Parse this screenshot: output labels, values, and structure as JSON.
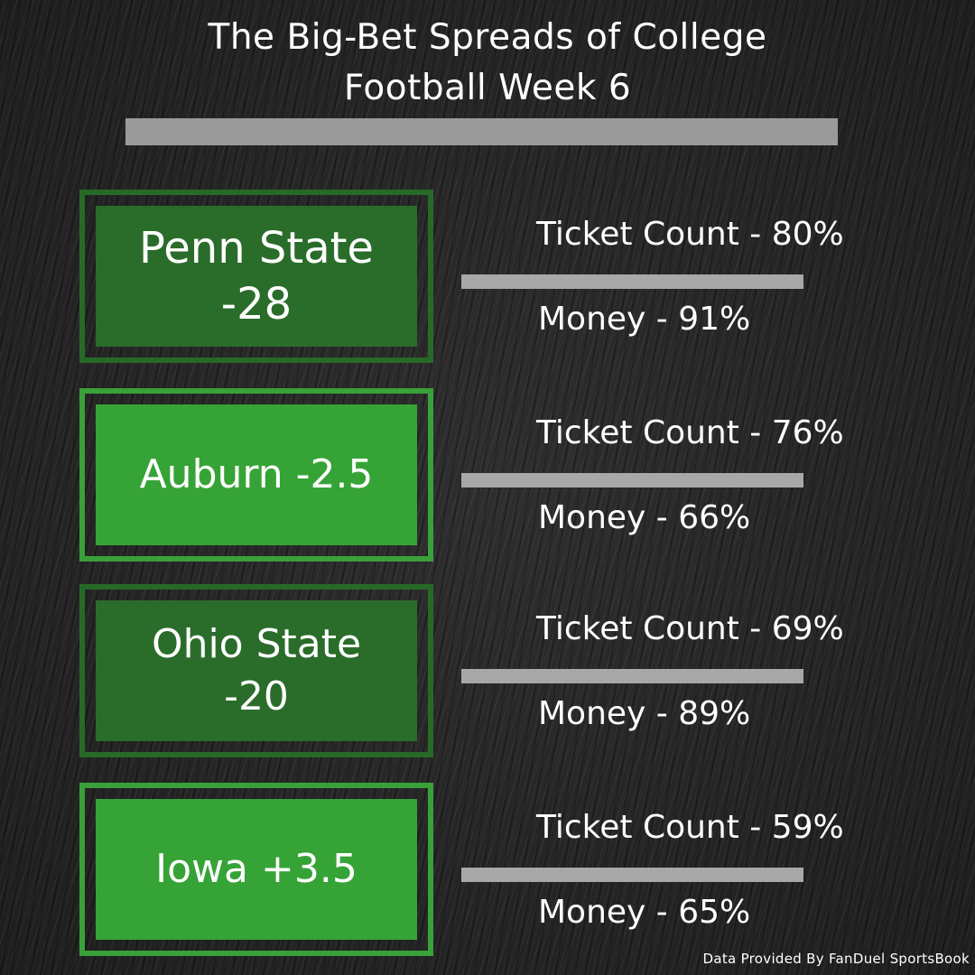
{
  "header": {
    "title_line1": "The Big-Bet Spreads of College",
    "title_line2": "Football Week 6"
  },
  "picks": [
    {
      "team": "Penn State\n-28",
      "ticket_count": "Ticket Count - 80%",
      "money": "Money - 91%"
    },
    {
      "team": "Auburn -2.5",
      "ticket_count": "Ticket Count - 76%",
      "money": "Money - 66%"
    },
    {
      "team": "Ohio State\n-20",
      "ticket_count": "Ticket Count - 69%",
      "money": "Money - 89%"
    },
    {
      "team": "Iowa +3.5",
      "ticket_count": "Ticket Count - 59%",
      "money": "Money - 65%"
    }
  ],
  "footer": {
    "credit": "Data Provided By FanDuel SportsBook"
  },
  "colors": {
    "accent_green": "#36a336",
    "dark_green": "#2a6d2a",
    "divider_gray": "#a8a8a8",
    "background": "#262626"
  }
}
